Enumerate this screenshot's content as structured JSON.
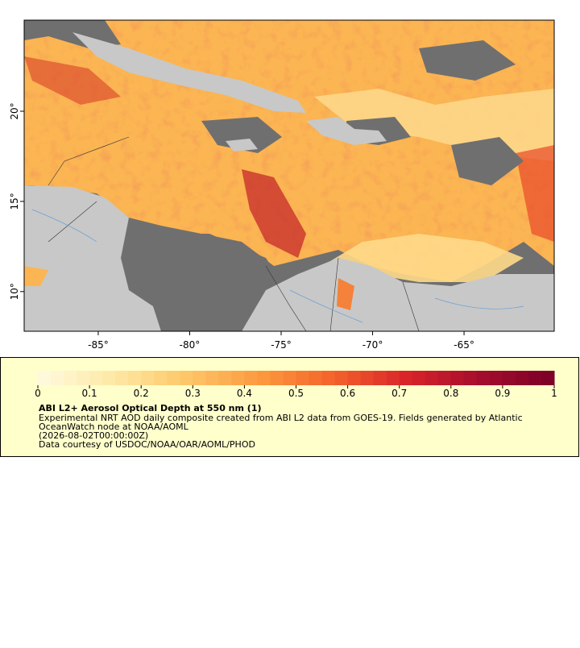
{
  "map": {
    "lonlim": [
      -89.05,
      -60.07
    ],
    "latlim": [
      7.8,
      25.05
    ],
    "lonticks": [
      {
        "value": -85,
        "label": "-85°"
      },
      {
        "value": -80,
        "label": "-80°"
      },
      {
        "value": -75,
        "label": "-75°"
      },
      {
        "value": -70,
        "label": "-70°"
      },
      {
        "value": -65,
        "label": "-65°"
      }
    ],
    "latticks": [
      {
        "value": 10,
        "label": "10°"
      },
      {
        "value": 15,
        "label": "15°"
      },
      {
        "value": 20,
        "label": "20°"
      }
    ]
  },
  "colorbar": {
    "range": [
      0,
      1
    ],
    "ticks": [
      0,
      0.1,
      0.2,
      0.3,
      0.4,
      0.5,
      0.6,
      0.7,
      0.8,
      0.9,
      1
    ],
    "colormap": [
      "#fffbe0",
      "#fee9a6",
      "#fdc86a",
      "#fc9a3f",
      "#f4632b",
      "#d9242a",
      "#a50d2d",
      "#7a0028"
    ],
    "steps": 40
  },
  "legend": {
    "title": "ABI L2+ Aerosol Optical Depth at 550 nm (1)",
    "lines": [
      "Experimental NRT AOD daily composite created from ABI L2 data from GOES-19. Fields generated by Atlantic",
      "OceanWatch node at NOAA/AOML",
      "(2026-08-02T00:00:00Z)",
      "Data courtesy of USDOC/NOAA/OAR/AOML/PHOD"
    ]
  }
}
